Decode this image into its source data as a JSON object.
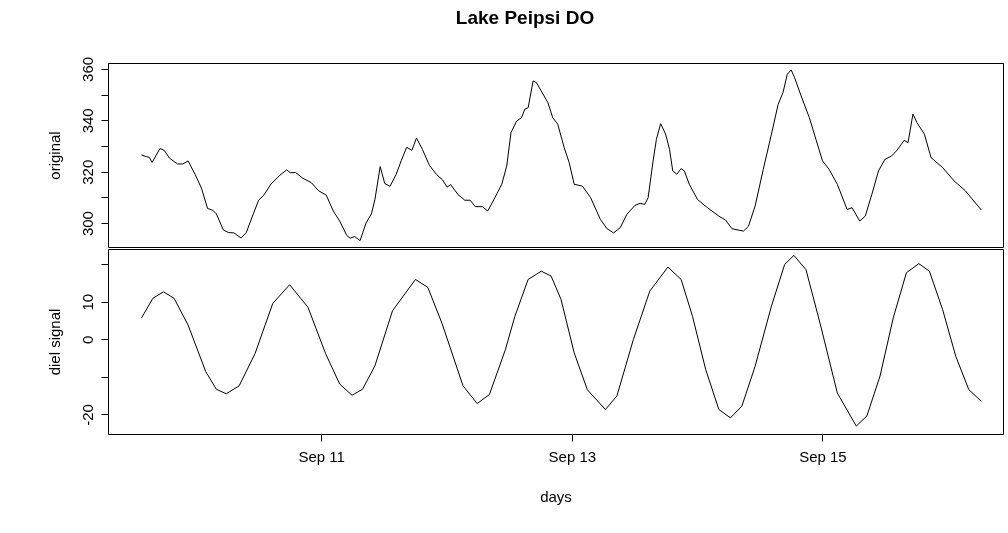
{
  "chart_data": [
    {
      "type": "line",
      "title": "Lake Peipsi DO",
      "ylabel": "original",
      "tick_labels": "y",
      "xlim": [
        "--09-09T07:10",
        "--09-16T10:35"
      ],
      "ylim": [
        290.7,
        362.3
      ],
      "yticks": [
        300,
        {
          "value": 310,
          "label": null
        },
        320,
        {
          "value": 330,
          "label": null
        },
        340,
        {
          "value": 350,
          "label": null
        },
        360
      ],
      "series": [
        {
          "color": "#000000",
          "x": [
            "--09-09T13:36",
            "--09-09T14:37",
            "--09-09T15:06",
            "--09-09T15:37",
            "--09-09T17:07",
            "--09-09T17:56",
            "--09-09T18:56",
            "--09-09T20:29",
            "--09-09T21:30",
            "--09-09T22:30",
            "--09-09T23:52",
            "--09-10T01:04",
            "--09-10T02:14",
            "--09-10T03:14",
            "--09-10T03:55",
            "--09-10T05:16",
            "--09-10T06:16",
            "--09-10T07:17",
            "--09-10T08:38",
            "--09-10T09:39",
            "--09-10T11:00",
            "--09-10T12:01",
            "--09-10T13:01",
            "--09-10T14:23",
            "--09-10T16:04",
            "--09-10T17:24",
            "--09-10T18:05",
            "--09-10T19:06",
            "--09-10T20:27",
            "--09-10T22:08",
            "--09-10T23:29",
            "--09-11T00:58",
            "--09-11T02:19",
            "--09-11T03:32",
            "--09-11T04:54",
            "--09-11T05:34",
            "--09-11T06:22",
            "--09-11T07:27",
            "--09-11T08:36",
            "--09-11T09:37",
            "--09-11T10:17",
            "--09-11T11:18",
            "--09-11T12:10",
            "--09-11T13:11",
            "--09-11T14:21",
            "--09-11T15:21",
            "--09-11T16:22",
            "--09-11T17:22",
            "--09-11T18:15",
            "--09-11T19:24",
            "--09-11T20:45",
            "--09-11T22:06",
            "--09-11T23:15",
            "--09-12T00:07",
            "--09-12T00:48",
            "--09-12T02:10",
            "--09-12T03:30",
            "--09-12T04:31",
            "--09-12T05:31",
            "--09-12T06:53",
            "--09-12T07:53",
            "--09-12T09:15",
            "--09-12T10:35",
            "--09-12T11:32",
            "--09-12T12:21",
            "--09-12T13:25",
            "--09-12T14:22",
            "--09-12T14:59",
            "--09-12T15:38",
            "--09-12T16:35",
            "--09-12T17:12",
            "--09-12T18:09",
            "--09-12T19:25",
            "--09-12T20:21",
            "--09-12T21:18",
            "--09-12T22:33",
            "--09-12T23:30",
            "--09-13T00:27",
            "--09-13T02:02",
            "--09-13T03:36",
            "--09-13T05:29",
            "--09-13T06:45",
            "--09-13T08:00",
            "--09-13T09:16",
            "--09-13T10:32",
            "--09-13T12:06",
            "--09-13T13:03",
            "--09-13T13:59",
            "--09-13T14:37",
            "--09-13T15:34",
            "--09-13T16:12",
            "--09-13T17:01",
            "--09-13T17:58",
            "--09-13T18:43",
            "--09-13T19:20",
            "--09-13T20:06",
            "--09-13T20:56",
            "--09-13T21:33",
            "--09-13T22:30",
            "--09-14T00:04",
            "--09-14T01:58",
            "--09-14T04:10",
            "--09-14T05:26",
            "--09-14T06:41",
            "--09-14T08:53",
            "--09-14T09:50",
            "--09-14T11:06",
            "--09-14T12:40",
            "--09-14T14:14",
            "--09-14T15:31",
            "--09-14T16:27",
            "--09-14T17:16",
            "--09-14T18:01",
            "--09-14T18:40",
            "--09-14T19:55",
            "--09-14T21:30",
            "--09-14T22:45",
            "--09-15T00:01",
            "--09-15T01:17",
            "--09-15T02:51",
            "--09-15T04:44",
            "--09-15T05:41",
            "--09-15T07:08",
            "--09-15T08:12",
            "--09-15T09:28",
            "--09-15T10:44",
            "--09-15T11:58",
            "--09-15T13:14",
            "--09-15T14:11",
            "--09-15T15:08",
            "--09-15T15:38",
            "--09-15T16:24",
            "--09-15T17:20",
            "--09-15T18:06",
            "--09-15T19:32",
            "--09-15T20:48",
            "--09-15T23:01",
            "--09-16T01:13",
            "--09-16T03:25",
            "--09-16T04:59",
            "--09-16T06:26"
          ],
          "values": [
            326.5,
            325.8,
            325.6,
            323.6,
            329,
            328.3,
            325.3,
            323,
            323,
            324.2,
            318.9,
            313.6,
            305.7,
            305,
            303.6,
            297.3,
            296.3,
            296.2,
            294.2,
            296.3,
            303.6,
            308.9,
            310.9,
            315.2,
            318.6,
            320.7,
            319.6,
            319.7,
            317.5,
            315.7,
            312.6,
            310.9,
            304.7,
            300.8,
            295.2,
            294.1,
            294.8,
            293.2,
            300.1,
            303.6,
            309.1,
            322,
            315.4,
            314.3,
            318.9,
            324.4,
            329.5,
            328.3,
            333.1,
            328.6,
            322.4,
            318.9,
            316.8,
            314,
            315,
            311.2,
            308.9,
            308.9,
            306.4,
            306.4,
            304.7,
            309.8,
            315.1,
            322.2,
            335.2,
            339.7,
            341,
            344.3,
            344.9,
            355.3,
            354.7,
            351.4,
            346.9,
            341,
            338.5,
            329.3,
            323.5,
            315.1,
            314.4,
            309.9,
            301.4,
            297.8,
            296.2,
            298.2,
            303.4,
            306.9,
            307.7,
            307.3,
            309.9,
            324.2,
            332.6,
            338.7,
            334.6,
            328.7,
            320.3,
            319,
            321.2,
            320.3,
            315.1,
            309.2,
            306,
            302.7,
            301.2,
            297.8,
            296.9,
            298.8,
            306.6,
            320.9,
            334.6,
            346.2,
            350.8,
            357.9,
            359.6,
            356.6,
            349.5,
            341,
            332.6,
            324.2,
            320.9,
            315.1,
            305.3,
            306,
            300.8,
            302.7,
            311.2,
            320.3,
            324.8,
            326.1,
            328.1,
            330.7,
            332.2,
            331.3,
            342.4,
            339.1,
            334.6,
            325.5,
            321.6,
            316.4,
            312.5,
            308.6,
            305.1
          ]
        }
      ]
    },
    {
      "type": "line",
      "xlabel": "days",
      "ylabel": "diel signal",
      "xlim": [
        "--09-09T07:10",
        "--09-16T10:35"
      ],
      "xticks": [
        {
          "value": "--09-11",
          "label": "Sep 11"
        },
        {
          "value": "--09-13",
          "label": "Sep 13"
        },
        {
          "value": "--09-15",
          "label": "Sep 15"
        }
      ],
      "ylim": [
        -25.2,
        24
      ],
      "yticks": [
        -20,
        {
          "value": -10,
          "label": null
        },
        0,
        10,
        {
          "value": 20,
          "label": null
        }
      ],
      "series": [
        {
          "color": "#000000",
          "x": [
            "--09-09T13:36",
            "--09-09T15:46",
            "--09-09T17:47",
            "--09-09T19:49",
            "--09-09T22:30",
            "--09-10T01:53",
            "--09-10T03:55",
            "--09-10T05:48",
            "--09-10T08:17",
            "--09-10T11:20",
            "--09-10T14:43",
            "--09-10T17:57",
            "--09-10T21:28",
            "--09-11T00:50",
            "--09-11T03:32",
            "--09-11T05:54",
            "--09-11T07:55",
            "--09-11T10:17",
            "--09-11T13:40",
            "--09-11T18:03",
            "--09-11T20:25",
            "--09-11T23:07",
            "--09-12T03:10",
            "--09-12T05:52",
            "--09-12T08:13",
            "--09-12T11:16",
            "--09-12T13:06",
            "--09-12T15:38",
            "--09-12T18:09",
            "--09-12T20:02",
            "--09-12T21:56",
            "--09-13T00:27",
            "--09-13T02:58",
            "--09-13T06:26",
            "--09-13T08:38",
            "--09-13T11:47",
            "--09-13T14:56",
            "--09-13T18:24",
            "--09-13T20:56",
            "--09-13T23:07",
            "--09-14T01:39",
            "--09-14T04:10",
            "--09-14T06:23",
            "--09-14T08:34",
            "--09-14T11:06",
            "--09-14T14:14",
            "--09-14T16:46",
            "--09-14T18:32",
            "--09-14T20:51",
            "--09-14T23:41",
            "--09-15T02:51",
            "--09-15T06:29",
            "--09-15T08:31",
            "--09-15T11:02",
            "--09-15T13:34",
            "--09-15T16:05",
            "--09-15T18:28",
            "--09-15T20:29",
            "--09-15T23:01",
            "--09-16T01:32",
            "--09-16T04:02",
            "--09-16T06:26"
          ],
          "values": [
            5.7,
            10.9,
            12.6,
            10.9,
            3.8,
            -8.6,
            -13.3,
            -14.5,
            -12.4,
            -3.8,
            9.5,
            14.5,
            8.5,
            -3.8,
            -11.9,
            -14.9,
            -13.3,
            -7.1,
            7.6,
            15.9,
            13.8,
            4.3,
            -12.4,
            -17.1,
            -14.7,
            -2.8,
            6.1,
            15.9,
            18.1,
            16.8,
            10.6,
            -3.6,
            -13.4,
            -18.7,
            -15.1,
            -0.1,
            12.8,
            19.2,
            15.9,
            6.1,
            -8.1,
            -18.7,
            -20.9,
            -17.8,
            -7.2,
            8.8,
            19.9,
            22.3,
            18.5,
            3.5,
            -14.3,
            -23.1,
            -20.4,
            -9.8,
            5.7,
            17.7,
            20.1,
            18.1,
            7.9,
            -4.5,
            -13.4,
            -16.5
          ]
        }
      ]
    }
  ]
}
